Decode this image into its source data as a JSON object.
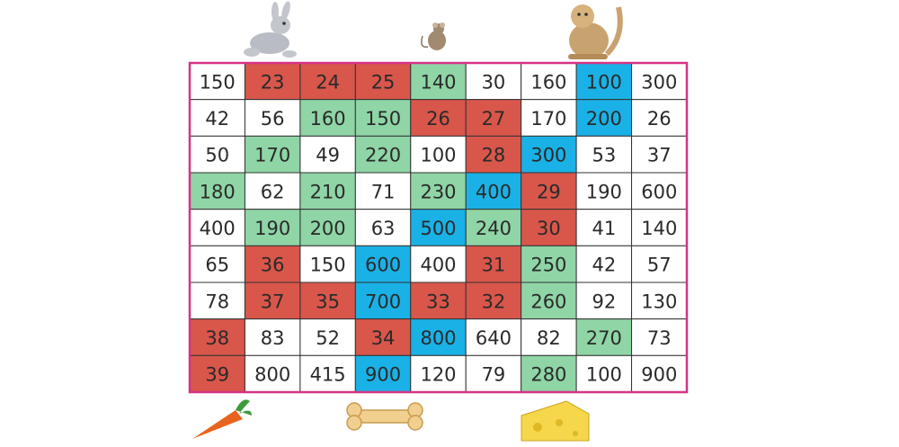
{
  "grid": {
    "rows": [
      [
        150,
        23,
        24,
        25,
        140,
        30,
        160,
        100,
        300
      ],
      [
        42,
        56,
        160,
        150,
        26,
        27,
        170,
        200,
        26
      ],
      [
        50,
        170,
        49,
        220,
        100,
        28,
        300,
        53,
        37
      ],
      [
        180,
        62,
        210,
        71,
        230,
        400,
        29,
        190,
        600
      ],
      [
        400,
        190,
        200,
        63,
        500,
        240,
        30,
        41,
        140
      ],
      [
        65,
        36,
        150,
        600,
        400,
        31,
        250,
        42,
        57
      ],
      [
        78,
        37,
        35,
        700,
        33,
        32,
        260,
        92,
        130
      ],
      [
        38,
        83,
        52,
        34,
        800,
        640,
        82,
        270,
        73
      ],
      [
        39,
        800,
        415,
        900,
        120,
        79,
        280,
        100,
        900
      ]
    ],
    "fills": [
      [
        "#ffffff",
        "#d9564b",
        "#d9564b",
        "#d9564b",
        "#8fd5a6",
        "#ffffff",
        "#ffffff",
        "#1ab1e6",
        "#ffffff"
      ],
      [
        "#ffffff",
        "#ffffff",
        "#8fd5a6",
        "#8fd5a6",
        "#d9564b",
        "#d9564b",
        "#ffffff",
        "#1ab1e6",
        "#ffffff"
      ],
      [
        "#ffffff",
        "#8fd5a6",
        "#ffffff",
        "#8fd5a6",
        "#ffffff",
        "#d9564b",
        "#1ab1e6",
        "#ffffff",
        "#ffffff"
      ],
      [
        "#8fd5a6",
        "#ffffff",
        "#8fd5a6",
        "#ffffff",
        "#8fd5a6",
        "#1ab1e6",
        "#d9564b",
        "#ffffff",
        "#ffffff"
      ],
      [
        "#ffffff",
        "#8fd5a6",
        "#8fd5a6",
        "#ffffff",
        "#1ab1e6",
        "#8fd5a6",
        "#d9564b",
        "#ffffff",
        "#ffffff"
      ],
      [
        "#ffffff",
        "#d9564b",
        "#ffffff",
        "#1ab1e6",
        "#ffffff",
        "#d9564b",
        "#8fd5a6",
        "#ffffff",
        "#ffffff"
      ],
      [
        "#ffffff",
        "#d9564b",
        "#d9564b",
        "#1ab1e6",
        "#d9564b",
        "#d9564b",
        "#8fd5a6",
        "#ffffff",
        "#ffffff"
      ],
      [
        "#d9564b",
        "#ffffff",
        "#ffffff",
        "#d9564b",
        "#1ab1e6",
        "#ffffff",
        "#ffffff",
        "#8fd5a6",
        "#ffffff"
      ],
      [
        "#d9564b",
        "#ffffff",
        "#ffffff",
        "#1ab1e6",
        "#ffffff",
        "#ffffff",
        "#8fd5a6",
        "#ffffff",
        "#ffffff"
      ]
    ]
  }
}
